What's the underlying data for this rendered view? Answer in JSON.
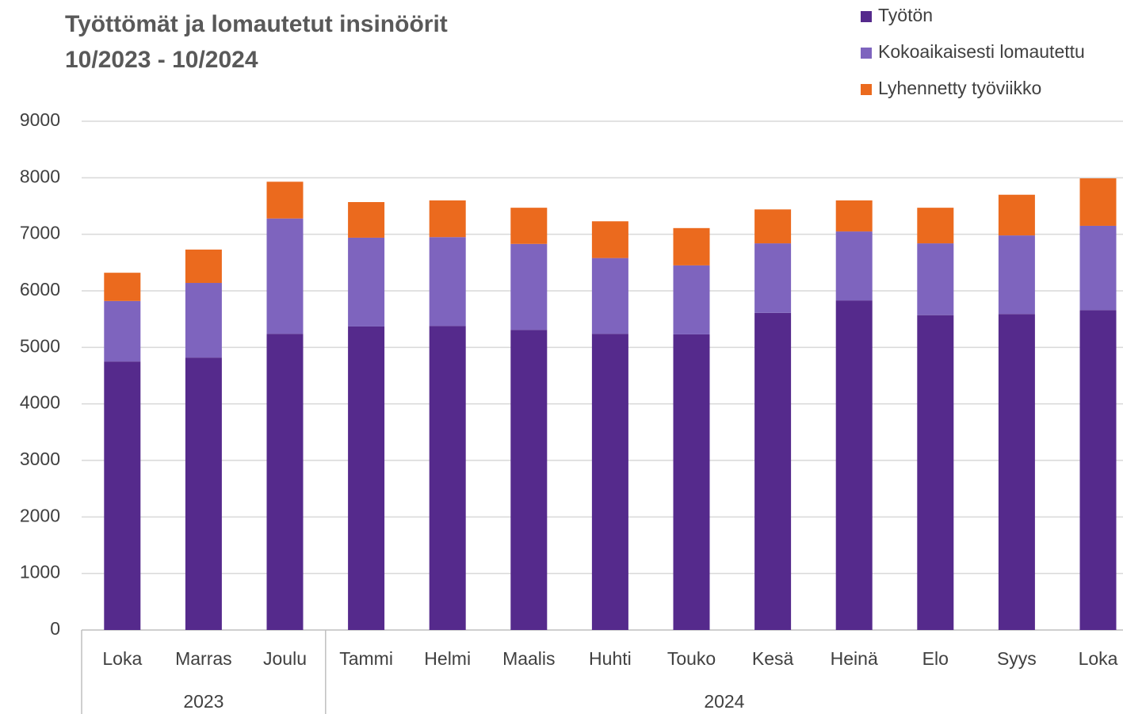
{
  "chart_data": {
    "type": "stacked_bar",
    "title": "Työttömät ja lomautetut insinöörit",
    "subtitle": "10/2023 - 10/2024",
    "groups": [
      {
        "label": "2023",
        "categories": [
          "Loka",
          "Marras",
          "Joulu"
        ]
      },
      {
        "label": "2024",
        "categories": [
          "Tammi",
          "Helmi",
          "Maalis",
          "Huhti",
          "Touko",
          "Kesä",
          "Heinä",
          "Elo",
          "Syys",
          "Loka"
        ]
      }
    ],
    "series": [
      {
        "name": "Työtön",
        "color": "#552a8c",
        "values": [
          4750,
          4820,
          5240,
          5370,
          5380,
          5310,
          5240,
          5230,
          5610,
          5830,
          5570,
          5590,
          5660
        ]
      },
      {
        "name": "Kokoaikaisesti lomautettu",
        "color": "#7e64be",
        "values": [
          1070,
          1320,
          2040,
          1570,
          1570,
          1520,
          1340,
          1220,
          1230,
          1220,
          1270,
          1390,
          1490
        ]
      },
      {
        "name": "Lyhennetty työviikko",
        "color": "#eb6a1e",
        "values": [
          500,
          590,
          650,
          630,
          650,
          640,
          650,
          660,
          600,
          550,
          630,
          720,
          840
        ]
      }
    ],
    "ylim": [
      0,
      9000
    ],
    "yticks": [
      0,
      1000,
      2000,
      3000,
      4000,
      5000,
      6000,
      7000,
      8000,
      9000
    ],
    "grid": true,
    "legend": "top-right"
  }
}
